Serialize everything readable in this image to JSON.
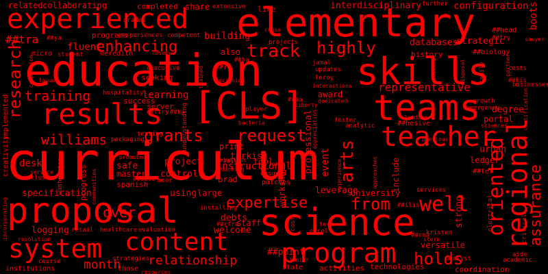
{
  "colors": {
    "background": "#000000",
    "word": "#ff0000"
  },
  "words": [
    "curriculum",
    "education",
    "elementary",
    "skills",
    "experienced",
    "teams",
    "science",
    "proposal",
    "results",
    "[CLS]",
    "program",
    "content",
    "teacher",
    "well",
    "regional",
    "oriented",
    "research",
    "system",
    "arts",
    "grants",
    "request",
    "williams",
    "enhancing",
    "track",
    "highly",
    "expertise",
    "from",
    "training",
    "assurance",
    "relationship",
    "holds",
    "over",
    "representative",
    "month",
    "collaborating",
    "related",
    "interdisciplinary",
    "configuration",
    "boots",
    "fluent",
    "learning",
    "building",
    "databases",
    "strategic",
    "instructional",
    "desk",
    "safe",
    "control",
    "project",
    "urban",
    "ledger",
    "portal",
    "specification",
    "using",
    "large",
    "logging",
    "leverage",
    "university",
    "debts",
    "welcome",
    "staff",
    "turkish",
    "tool",
    "brad",
    "print",
    "event",
    "professional",
    "workshops",
    "include",
    "strong",
    "degree",
    "history",
    "##tra",
    "##rfra",
    "##point",
    "completed",
    "share",
    "extensive",
    "like",
    "further",
    "grades",
    "programs",
    "experiences",
    "competent",
    "micro",
    "student",
    "meredith",
    "revenue",
    "executive",
    "seeking",
    "server",
    "success",
    "hospitality",
    "testing",
    "packaging",
    "promoted",
    "master",
    "spanish",
    "evaluation",
    "retail",
    "healthcare",
    "those",
    "strategies",
    "course",
    "institutions",
    "resolution",
    "service",
    "inclusion",
    "washington",
    "progress",
    "communities",
    "creativity",
    "implemented",
    "incorporating",
    "completion",
    "also",
    "projects",
    "jamal",
    "updates",
    "leroy",
    "interactions",
    "award",
    "dedicated",
    "foster",
    "analytic",
    "player",
    "approaches",
    "experience",
    "appreciation",
    "cost",
    "tech",
    "excel",
    "state",
    "junior",
    "activities",
    "technologies",
    "coordination",
    "analyst",
    "aide",
    "academic",
    "critical",
    "versatile",
    "kristen",
    "store",
    "electrical",
    "services",
    "sawyer",
    "family",
    "costs",
    "growth",
    "emergency",
    "certification",
    "sciences",
    "businesses",
    "##hesive",
    "##ter",
    "##ilis",
    "##rma",
    "##ttry",
    "##biology",
    "##ya",
    "##head",
    "##fry",
    "##kis",
    "##ha",
    "##ial",
    "##able",
    "##aa",
    "##ka",
    "##ru",
    "trained",
    "designing",
    "relations",
    "coaching",
    "ensured",
    "patches",
    "moor",
    "inter",
    "develop",
    "partner",
    "disposal",
    "focus",
    "bacteria",
    "understanding",
    "previous",
    "cross",
    "leading",
    "resources",
    "installing",
    "liberty",
    "telecommunications",
    "lowe",
    "cook"
  ]
}
